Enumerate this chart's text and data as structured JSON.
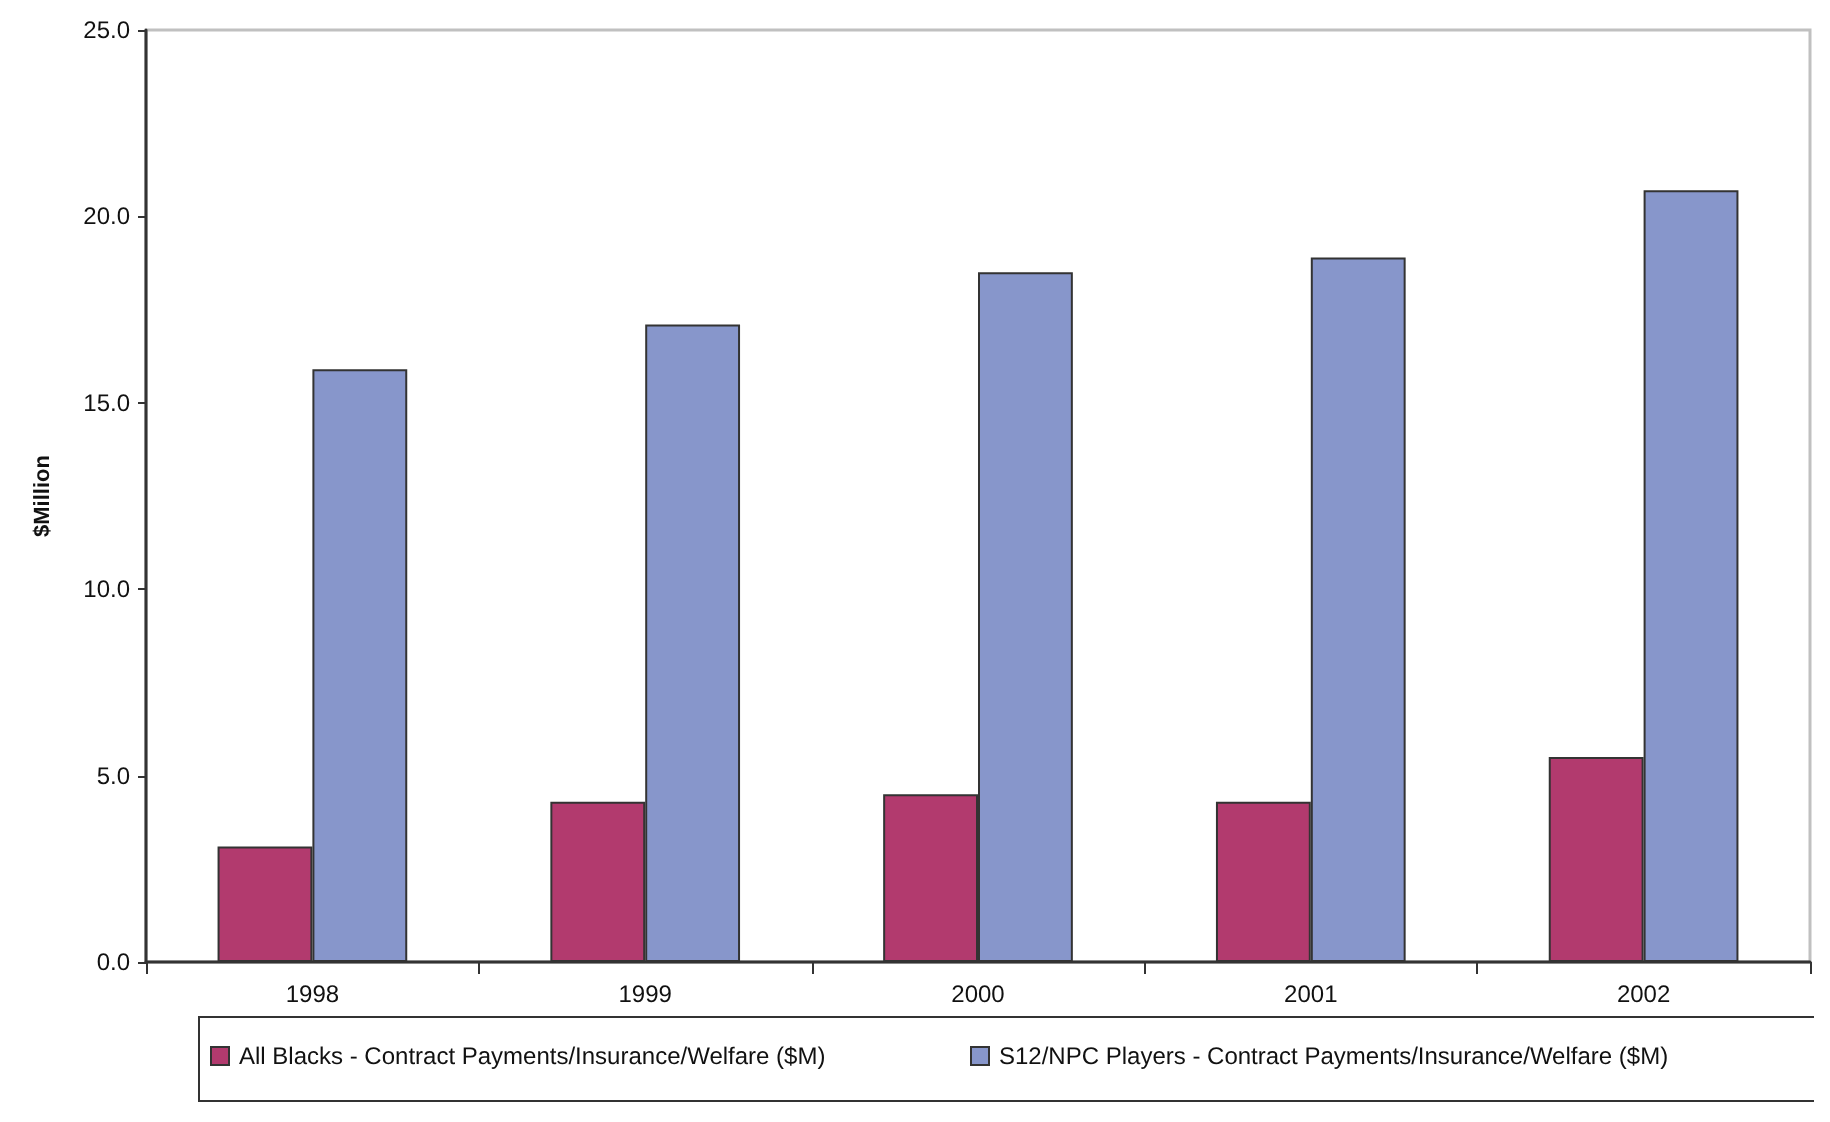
{
  "chart_data": {
    "type": "bar",
    "ylabel": "$Million",
    "categories": [
      "1998",
      "1999",
      "2000",
      "2001",
      "2002"
    ],
    "series": [
      {
        "name": "All Blacks - Contract Payments/Insurance/Welfare ($M)",
        "color": "#b23a6e",
        "values": [
          3.1,
          4.3,
          4.5,
          4.3,
          5.5
        ]
      },
      {
        "name": "S12/NPC Players - Contract Payments/Insurance/Welfare ($M)",
        "color": "#8796cb",
        "values": [
          15.9,
          17.1,
          18.5,
          18.9,
          20.7
        ]
      }
    ],
    "ylim": [
      0,
      25
    ],
    "yticks": [
      {
        "value": 0,
        "label": "0.0"
      },
      {
        "value": 5,
        "label": "5.0"
      },
      {
        "value": 10,
        "label": "10.0"
      },
      {
        "value": 15,
        "label": "15.0"
      },
      {
        "value": 20,
        "label": "20.0"
      },
      {
        "value": 25,
        "label": "25.0"
      }
    ],
    "grid": false,
    "legend": "bottom"
  }
}
